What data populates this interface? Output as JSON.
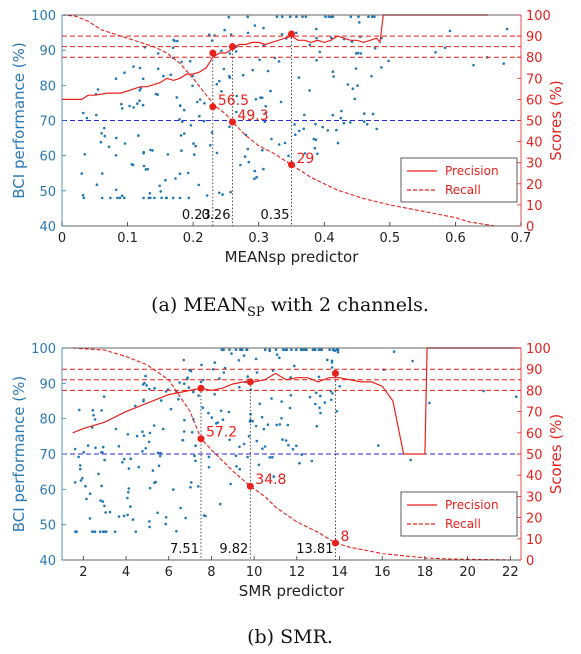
{
  "colors": {
    "scatter": "#1f77b4",
    "left_axis": "#2a7ab8",
    "right_axis": "#e8211d",
    "precision": "#e8211d",
    "recall": "#e8211d",
    "threshold": "#2a2ad6",
    "ref_lines": "#e8211d"
  },
  "chart_data": [
    {
      "type": "scatter",
      "caption_main": "(a) MEAN",
      "caption_sub": "SP",
      "caption_rest": " with 2 channels.",
      "xlabel": "MEANsp predictor",
      "ylabel_left": "BCI performance (%)",
      "ylabel_right": "Scores (%)",
      "xlim": [
        0,
        0.7
      ],
      "xticks": [
        "0",
        "0.1",
        "0.2",
        "0.3",
        "0.4",
        "0.5",
        "0.6",
        "0.7"
      ],
      "ylim_left": [
        40,
        100
      ],
      "yticks_left": [
        "40",
        "50",
        "60",
        "70",
        "80",
        "90",
        "100"
      ],
      "ylim_right": [
        0,
        100
      ],
      "yticks_right": [
        "0",
        "10",
        "20",
        "30",
        "40",
        "50",
        "60",
        "70",
        "80",
        "90",
        "100"
      ],
      "threshold_left": 70,
      "ref_lines_right": [
        80,
        85,
        90
      ],
      "legend": {
        "position": "bottom-right",
        "entries": [
          "Precision",
          "Recall"
        ]
      },
      "precision": {
        "x": [
          0.0,
          0.02,
          0.03,
          0.04,
          0.05,
          0.07,
          0.08,
          0.09,
          0.1,
          0.11,
          0.12,
          0.13,
          0.14,
          0.15,
          0.16,
          0.17,
          0.18,
          0.19,
          0.2,
          0.21,
          0.22,
          0.23,
          0.24,
          0.25,
          0.26,
          0.27,
          0.28,
          0.29,
          0.3,
          0.31,
          0.32,
          0.33,
          0.34,
          0.35,
          0.36,
          0.37,
          0.38,
          0.39,
          0.4,
          0.41,
          0.42,
          0.43,
          0.44,
          0.45,
          0.46,
          0.47,
          0.48,
          0.485,
          0.49,
          0.5,
          0.55,
          0.6,
          0.65
        ],
        "y": [
          60,
          60,
          60,
          62,
          62,
          63,
          63,
          63,
          64,
          65,
          66,
          66,
          67,
          68,
          70,
          69,
          70,
          72,
          72,
          73,
          75,
          80,
          82,
          82,
          84,
          86,
          86,
          87,
          87,
          86,
          87,
          88,
          89,
          90,
          88,
          88,
          87,
          88,
          87,
          88,
          90,
          89,
          88,
          88,
          87,
          88,
          89,
          87,
          100,
          100,
          100,
          100,
          100
        ]
      },
      "recall": {
        "x": [
          0.0,
          0.02,
          0.04,
          0.05,
          0.06,
          0.08,
          0.1,
          0.12,
          0.14,
          0.16,
          0.18,
          0.2,
          0.22,
          0.235,
          0.25,
          0.26,
          0.28,
          0.3,
          0.32,
          0.34,
          0.35,
          0.38,
          0.42,
          0.46,
          0.5,
          0.55,
          0.6,
          0.62,
          0.64,
          0.66
        ],
        "y": [
          100,
          99.5,
          97,
          95,
          93,
          91,
          89,
          87,
          85,
          82,
          77,
          70,
          62,
          56.5,
          53,
          49.3,
          43,
          38,
          35,
          31,
          29,
          23,
          17,
          13,
          10,
          7,
          4,
          2,
          1,
          0
        ]
      },
      "markers": [
        {
          "x": 0.23,
          "precision": 82,
          "recall": 56.5,
          "label": "56.5",
          "xlabel": "0.23"
        },
        {
          "x": 0.26,
          "precision": 85,
          "recall": 49.3,
          "label": "49.3",
          "xlabel": "0.26"
        },
        {
          "x": 0.35,
          "precision": 91,
          "recall": 29,
          "label": "29",
          "xlabel": "0.35"
        }
      ]
    },
    {
      "type": "scatter",
      "caption_main": "(b) SMR.",
      "caption_sub": "",
      "caption_rest": "",
      "xlabel": "SMR predictor",
      "ylabel_left": "BCI performance (%)",
      "ylabel_right": "Scores (%)",
      "xlim": [
        1,
        22.5
      ],
      "xticks": [
        "2",
        "4",
        "6",
        "8",
        "10",
        "12",
        "14",
        "16",
        "18",
        "20",
        "22"
      ],
      "ylim_left": [
        40,
        100
      ],
      "yticks_left": [
        "40",
        "50",
        "60",
        "70",
        "80",
        "90",
        "100"
      ],
      "ylim_right": [
        0,
        100
      ],
      "yticks_right": [
        "0",
        "10",
        "20",
        "30",
        "40",
        "50",
        "60",
        "70",
        "80",
        "90",
        "100"
      ],
      "threshold_left": 70,
      "ref_lines_right": [
        80,
        85,
        90
      ],
      "legend": {
        "position": "bottom-right",
        "entries": [
          "Precision",
          "Recall"
        ]
      },
      "precision": {
        "x": [
          1.5,
          2,
          3,
          4,
          5,
          6,
          7,
          7.5,
          8,
          8.5,
          9,
          9.5,
          10,
          10.5,
          11,
          11.5,
          12,
          12.5,
          13,
          13.5,
          14,
          14.5,
          15,
          15.5,
          16,
          16.5,
          16.8,
          17,
          17.5,
          18,
          18.1,
          22.5
        ],
        "y": [
          60,
          62,
          65,
          70,
          74,
          78,
          80,
          81,
          80,
          81,
          83,
          84,
          84,
          85,
          88,
          85,
          86,
          86,
          84,
          86,
          86,
          85,
          84,
          84,
          82,
          75,
          60,
          50,
          50,
          50,
          100,
          100
        ]
      },
      "recall": {
        "x": [
          1.5,
          3,
          4,
          5,
          6,
          7,
          7.51,
          8,
          8.5,
          9,
          9.82,
          10.5,
          11,
          12,
          13,
          13.81,
          14.5,
          15,
          16,
          17,
          18,
          19,
          20,
          21,
          22
        ],
        "y": [
          100,
          99,
          96,
          92,
          85,
          70,
          57.2,
          52,
          47,
          42,
          34.8,
          30,
          25,
          18,
          13,
          8,
          6,
          5,
          3,
          2,
          1,
          0.5,
          0.3,
          0.2,
          0
        ]
      },
      "markers": [
        {
          "x": 7.51,
          "precision": 81,
          "recall": 57.2,
          "label": "57.2",
          "xlabel": "7.51"
        },
        {
          "x": 9.82,
          "precision": 84,
          "recall": 34.8,
          "label": "34.8",
          "xlabel": "9.82"
        },
        {
          "x": 13.81,
          "precision": 88,
          "recall": 8,
          "label": "8",
          "xlabel": "13.81"
        }
      ]
    }
  ]
}
